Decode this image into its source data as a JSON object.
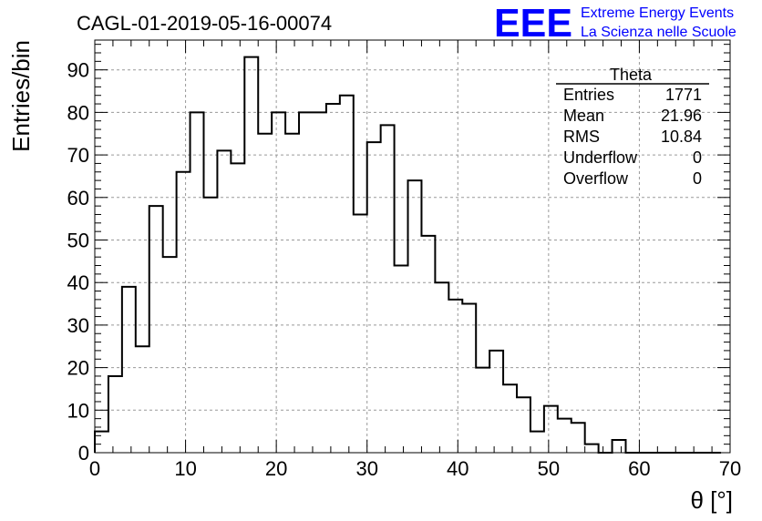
{
  "chart_data": {
    "type": "bar",
    "title": "CAGL-01-2019-05-16-00074",
    "xlabel": "θ [°]",
    "ylabel": "Entries/bin",
    "xlim": [
      0,
      70
    ],
    "ylim": [
      0,
      97
    ],
    "x_ticks": [
      0,
      10,
      20,
      30,
      40,
      50,
      60,
      70
    ],
    "y_ticks": [
      0,
      10,
      20,
      30,
      40,
      50,
      60,
      70,
      80,
      90
    ],
    "grid": true,
    "bin_width": 1.5,
    "bin_edges_start": 0,
    "values": [
      5,
      18,
      39,
      25,
      58,
      46,
      66,
      80,
      60,
      71,
      68,
      93,
      75,
      80,
      75,
      80,
      80,
      82,
      84,
      56,
      73,
      77,
      44,
      64,
      51,
      40,
      36,
      35,
      20,
      24,
      16,
      13,
      5,
      11,
      8,
      7,
      2,
      0,
      3,
      0,
      0,
      0,
      0,
      0,
      0,
      0
    ]
  },
  "stats_box": {
    "name": "Theta",
    "rows": [
      {
        "label": "Entries",
        "value": "1771"
      },
      {
        "label": "Mean",
        "value": "21.96"
      },
      {
        "label": "RMS",
        "value": "10.84"
      },
      {
        "label": "Underflow",
        "value": "0"
      },
      {
        "label": "Overflow",
        "value": "0"
      }
    ]
  },
  "logo": {
    "mark": "EEE",
    "line1": "Extreme Energy Events",
    "line2": "La Scienza nelle Scuole",
    "color": "#0000ff"
  }
}
